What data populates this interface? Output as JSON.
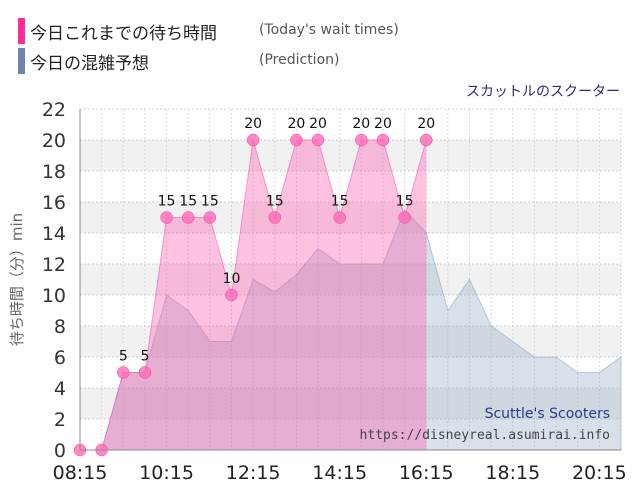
{
  "legend": [
    {
      "label_jp": "今日これまでの待ち時間",
      "label_en": "(Today's wait times)",
      "color": "#ff2d95"
    },
    {
      "label_jp": "今日の混雑予想",
      "label_en": "(Prediction)",
      "color": "#6a86ad"
    }
  ],
  "subtitle": "スカットルのスクーター",
  "watermark": {
    "title": "Scuttle's Scooters",
    "url": "https://disneyreal.asumirai.info"
  },
  "chart_data": {
    "type": "area",
    "ylabel": "待ち時間（分）min",
    "ylim": [
      0,
      22
    ],
    "yticks": [
      0,
      2,
      4,
      6,
      8,
      10,
      12,
      14,
      16,
      18,
      20,
      22
    ],
    "xlim": [
      "08:15",
      "20:45"
    ],
    "xticks": [
      "08:15",
      "10:15",
      "12:15",
      "14:15",
      "16:15",
      "18:15",
      "20:15"
    ],
    "grid": true,
    "series": [
      {
        "name": "今日これまでの待ち時間",
        "style": "area-markers",
        "color": "#ff4fa6",
        "points": [
          {
            "t": "08:15",
            "v": 0,
            "label": ""
          },
          {
            "t": "08:45",
            "v": 0,
            "label": ""
          },
          {
            "t": "09:15",
            "v": 5,
            "label": "5"
          },
          {
            "t": "09:45",
            "v": 5,
            "label": "5"
          },
          {
            "t": "10:15",
            "v": 15,
            "label": "15"
          },
          {
            "t": "10:45",
            "v": 15,
            "label": "15"
          },
          {
            "t": "11:15",
            "v": 15,
            "label": "15"
          },
          {
            "t": "11:45",
            "v": 10,
            "label": "10"
          },
          {
            "t": "12:15",
            "v": 20,
            "label": "20"
          },
          {
            "t": "12:45",
            "v": 15,
            "label": "15"
          },
          {
            "t": "13:15",
            "v": 20,
            "label": "20"
          },
          {
            "t": "13:45",
            "v": 20,
            "label": "20"
          },
          {
            "t": "14:15",
            "v": 15,
            "label": "15"
          },
          {
            "t": "14:45",
            "v": 20,
            "label": "20"
          },
          {
            "t": "15:15",
            "v": 20,
            "label": "20"
          },
          {
            "t": "15:45",
            "v": 15,
            "label": "15"
          },
          {
            "t": "16:15",
            "v": 20,
            "label": "20"
          }
        ]
      },
      {
        "name": "今日の混雑予想",
        "style": "area",
        "color": "#8fa8c4",
        "points": [
          {
            "t": "08:15",
            "v": 0
          },
          {
            "t": "08:45",
            "v": 0
          },
          {
            "t": "09:15",
            "v": 5
          },
          {
            "t": "09:45",
            "v": 5
          },
          {
            "t": "10:15",
            "v": 10
          },
          {
            "t": "10:45",
            "v": 9
          },
          {
            "t": "11:15",
            "v": 7
          },
          {
            "t": "11:45",
            "v": 7
          },
          {
            "t": "12:15",
            "v": 11
          },
          {
            "t": "12:45",
            "v": 10.2
          },
          {
            "t": "13:15",
            "v": 11.3
          },
          {
            "t": "13:45",
            "v": 13
          },
          {
            "t": "14:15",
            "v": 12
          },
          {
            "t": "14:45",
            "v": 12
          },
          {
            "t": "15:15",
            "v": 12
          },
          {
            "t": "15:45",
            "v": 15.5
          },
          {
            "t": "16:15",
            "v": 14
          },
          {
            "t": "16:45",
            "v": 9
          },
          {
            "t": "17:15",
            "v": 11
          },
          {
            "t": "17:45",
            "v": 8
          },
          {
            "t": "18:15",
            "v": 7
          },
          {
            "t": "18:45",
            "v": 6
          },
          {
            "t": "19:15",
            "v": 6
          },
          {
            "t": "19:45",
            "v": 5
          },
          {
            "t": "20:15",
            "v": 5
          },
          {
            "t": "20:45",
            "v": 6
          }
        ]
      }
    ]
  }
}
